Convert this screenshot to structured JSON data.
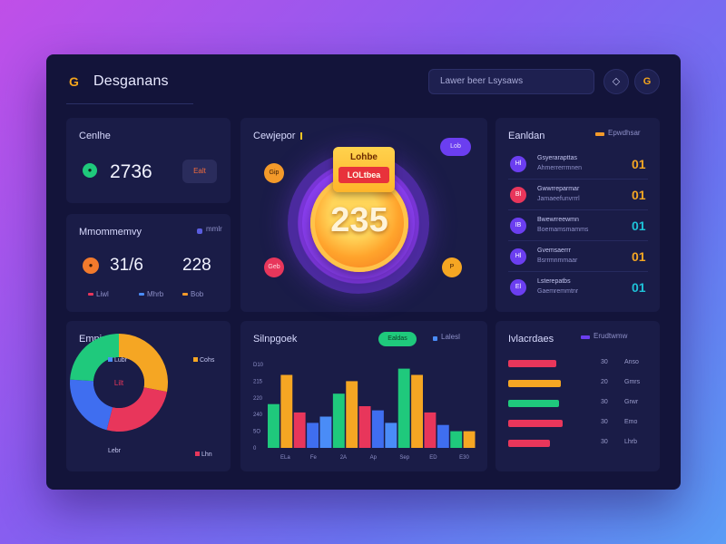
{
  "header": {
    "app_title": "Desganans",
    "search_placeholder": "Lawer beer Lsysaws",
    "gold_button": "G"
  },
  "card_total": {
    "title": "Cenlhe",
    "value": "2736",
    "pill": "Ealt"
  },
  "card_mmo": {
    "title": "Mmommemvy",
    "legend": "mmlr",
    "value_left": "31/6",
    "value_right": "228",
    "legend_items": [
      {
        "label": "Liwl",
        "color": "#e8365b"
      },
      {
        "label": "Mhrb",
        "color": "#4a8cf7"
      },
      {
        "label": "Bob",
        "color": "#f49a2a"
      }
    ]
  },
  "hero": {
    "title": "Cewjepor",
    "badge_title": "Lohbe",
    "badge_sub": "LOLtbea",
    "value": "235",
    "bubble_top_left": "Gip",
    "bubble_bottom_left": "Geb",
    "bubble_bottom_right": "P",
    "bubble_top_right": "Lob"
  },
  "ranking": {
    "title": "Eanldan",
    "legend": "Epwdhsar",
    "rows": [
      {
        "icon": "Hl",
        "line1": "Gsyerarapttas",
        "line2": "Ahmerrerrmnen",
        "value": "01",
        "icon_color": "#6b3ef0",
        "value_color": "#f5a623"
      },
      {
        "icon": "Bl",
        "line1": "Gwwrreparmar",
        "line2": "Jamaeefunvrrrl",
        "value": "01",
        "icon_color": "#e8365b",
        "value_color": "#f5a623"
      },
      {
        "icon": "IB",
        "line1": "Bwewrreewmn",
        "line2": "Boemamsmamms",
        "value": "01",
        "icon_color": "#6b3ef0",
        "value_color": "#1ec2d8"
      },
      {
        "icon": "Hl",
        "line1": "Gvemsaerrr",
        "line2": "Bsrrmnmmaar",
        "value": "01",
        "icon_color": "#6b3ef0",
        "value_color": "#f5a623"
      },
      {
        "icon": "El",
        "line1": "Lsterepatbs",
        "line2": "Gaemremmtnr",
        "value": "01",
        "icon_color": "#6b3ef0",
        "value_color": "#1ec2d8"
      }
    ]
  },
  "donut": {
    "title": "Emnipsomcr",
    "center": "Lilt",
    "labels": [
      "Lubr",
      "Cohs",
      "Lebr",
      "Lhn"
    ],
    "chart_data": {
      "type": "pie",
      "values": [
        28,
        26,
        22,
        24
      ],
      "colors": [
        "#f5a623",
        "#e8365b",
        "#3f6ef0",
        "#1fc97c"
      ]
    }
  },
  "bars": {
    "title": "Silnpgoek",
    "toggle": "Ealdas",
    "legend": "Lalesl",
    "y_ticks": [
      "D10",
      "215",
      "220",
      "240",
      "5O",
      "0"
    ],
    "x_ticks": [
      "ELa",
      "Fe",
      "2A",
      "Ap",
      "Sep",
      "ED",
      "E30"
    ],
    "chart_data": {
      "type": "bar",
      "values": [
        {
          "v": 42,
          "c": "#1fc97c"
        },
        {
          "v": 70,
          "c": "#f5a623"
        },
        {
          "v": 34,
          "c": "#e8365b"
        },
        {
          "v": 24,
          "c": "#3f6ef0"
        },
        {
          "v": 30,
          "c": "#4a8cf7"
        },
        {
          "v": 52,
          "c": "#1fc97c"
        },
        {
          "v": 64,
          "c": "#f5a623"
        },
        {
          "v": 40,
          "c": "#e8365b"
        },
        {
          "v": 36,
          "c": "#3f6ef0"
        },
        {
          "v": 24,
          "c": "#4a8cf7"
        },
        {
          "v": 76,
          "c": "#1fc97c"
        },
        {
          "v": 70,
          "c": "#f5a623"
        },
        {
          "v": 34,
          "c": "#e8365b"
        },
        {
          "v": 22,
          "c": "#3f6ef0"
        },
        {
          "v": 16,
          "c": "#1fc97c"
        },
        {
          "v": 16,
          "c": "#f5a623"
        }
      ]
    }
  },
  "progress": {
    "title": "Ivlacrdaes",
    "legend": "Erudtwmw",
    "rows": [
      {
        "fill": 0.55,
        "color": "#e8365b",
        "a": "30",
        "b": "Anso"
      },
      {
        "fill": 0.6,
        "color": "#f5a623",
        "a": "20",
        "b": "Gmrs"
      },
      {
        "fill": 0.58,
        "color": "#1fc97c",
        "a": "30",
        "b": "Grwr"
      },
      {
        "fill": 0.62,
        "color": "#e8365b",
        "a": "30",
        "b": "Emo"
      },
      {
        "fill": 0.48,
        "color": "#e8365b",
        "a": "30",
        "b": "Lhrb"
      }
    ]
  }
}
